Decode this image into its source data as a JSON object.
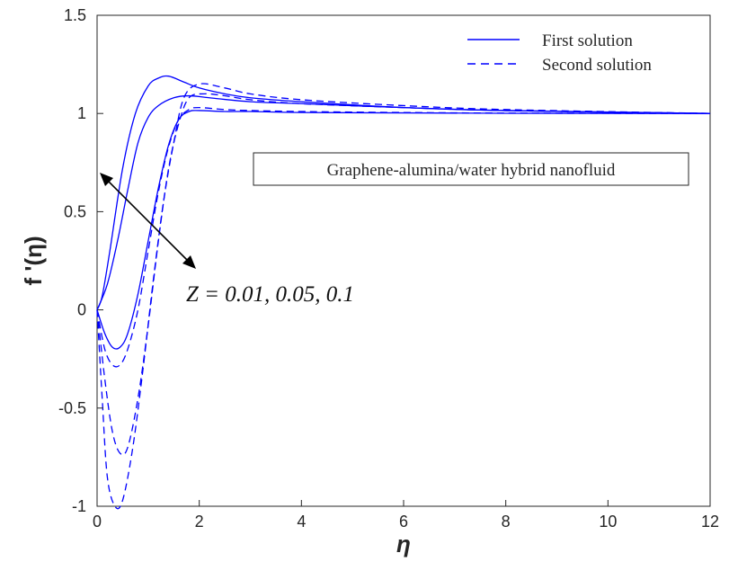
{
  "chart_data": {
    "type": "line",
    "title": "",
    "xlabel": "η",
    "ylabel": "f '(η)",
    "xlim": [
      0,
      12
    ],
    "ylim": [
      -1,
      1.5
    ],
    "xticks": [
      "0",
      "2",
      "4",
      "6",
      "8",
      "10",
      "12"
    ],
    "yticks": [
      "-1",
      "-0.5",
      "0",
      "0.5",
      "1",
      "1.5"
    ],
    "grid": false,
    "legend_position": "top-right",
    "legend": [
      {
        "label": "First solution",
        "style": "solid"
      },
      {
        "label": "Second solution",
        "style": "dashed"
      }
    ],
    "line_color": "#0000ff",
    "annotation_box": "Graphene-alumina/water hybrid nanofluid",
    "parameter_label": "Z = 0.01, 0.05, 0.1",
    "series": [
      {
        "style": "solid",
        "x": [
          0,
          0.1,
          0.25,
          0.5,
          0.75,
          1.0,
          1.2,
          1.4,
          1.7,
          2.0,
          2.5,
          3,
          4,
          6,
          8,
          12
        ],
        "y": [
          0,
          0.07,
          0.3,
          0.72,
          1.0,
          1.14,
          1.18,
          1.19,
          1.16,
          1.13,
          1.1,
          1.08,
          1.06,
          1.03,
          1.015,
          1.0
        ]
      },
      {
        "style": "solid",
        "x": [
          0,
          0.2,
          0.4,
          0.6,
          0.8,
          1.0,
          1.2,
          1.5,
          1.8,
          2.2,
          3,
          4,
          6,
          8,
          12
        ],
        "y": [
          0,
          0.13,
          0.35,
          0.61,
          0.85,
          0.98,
          1.04,
          1.08,
          1.09,
          1.08,
          1.06,
          1.05,
          1.03,
          1.015,
          1.0
        ]
      },
      {
        "style": "solid",
        "x": [
          0,
          0.15,
          0.3,
          0.45,
          0.6,
          0.8,
          1.0,
          1.2,
          1.4,
          1.6,
          1.8,
          2.0,
          2.5,
          3,
          4,
          6,
          8,
          12
        ],
        "y": [
          0,
          -0.12,
          -0.19,
          -0.19,
          -0.12,
          0.08,
          0.35,
          0.62,
          0.84,
          0.97,
          1.01,
          1.015,
          1.01,
          1.01,
          1.005,
          1.003,
          1.001,
          1.0
        ]
      },
      {
        "style": "dashed",
        "x": [
          0,
          0.1,
          0.2,
          0.35,
          0.5,
          0.7,
          0.9,
          1.1,
          1.3,
          1.5,
          1.7,
          2.0,
          2.5,
          3,
          4,
          6,
          8,
          12
        ],
        "y": [
          0,
          -0.45,
          -0.85,
          -1.0,
          -0.97,
          -0.7,
          -0.3,
          0.15,
          0.55,
          0.85,
          1.08,
          1.15,
          1.13,
          1.1,
          1.07,
          1.04,
          1.02,
          1.0
        ]
      },
      {
        "style": "dashed",
        "x": [
          0,
          0.15,
          0.3,
          0.45,
          0.6,
          0.8,
          1.0,
          1.2,
          1.4,
          1.6,
          1.8,
          2.1,
          2.5,
          3,
          4,
          6,
          8,
          12
        ],
        "y": [
          0,
          -0.35,
          -0.62,
          -0.73,
          -0.7,
          -0.45,
          -0.08,
          0.35,
          0.72,
          0.95,
          1.08,
          1.1,
          1.09,
          1.07,
          1.05,
          1.03,
          1.015,
          1.0
        ]
      },
      {
        "style": "dashed",
        "x": [
          0,
          0.15,
          0.3,
          0.45,
          0.6,
          0.8,
          1.0,
          1.2,
          1.4,
          1.6,
          1.8,
          2.0,
          2.5,
          3,
          4,
          6,
          8,
          12
        ],
        "y": [
          0,
          -0.2,
          -0.28,
          -0.28,
          -0.2,
          0.0,
          0.3,
          0.6,
          0.83,
          0.97,
          1.02,
          1.03,
          1.02,
          1.015,
          1.01,
          1.005,
          1.002,
          1.0
        ]
      }
    ]
  }
}
